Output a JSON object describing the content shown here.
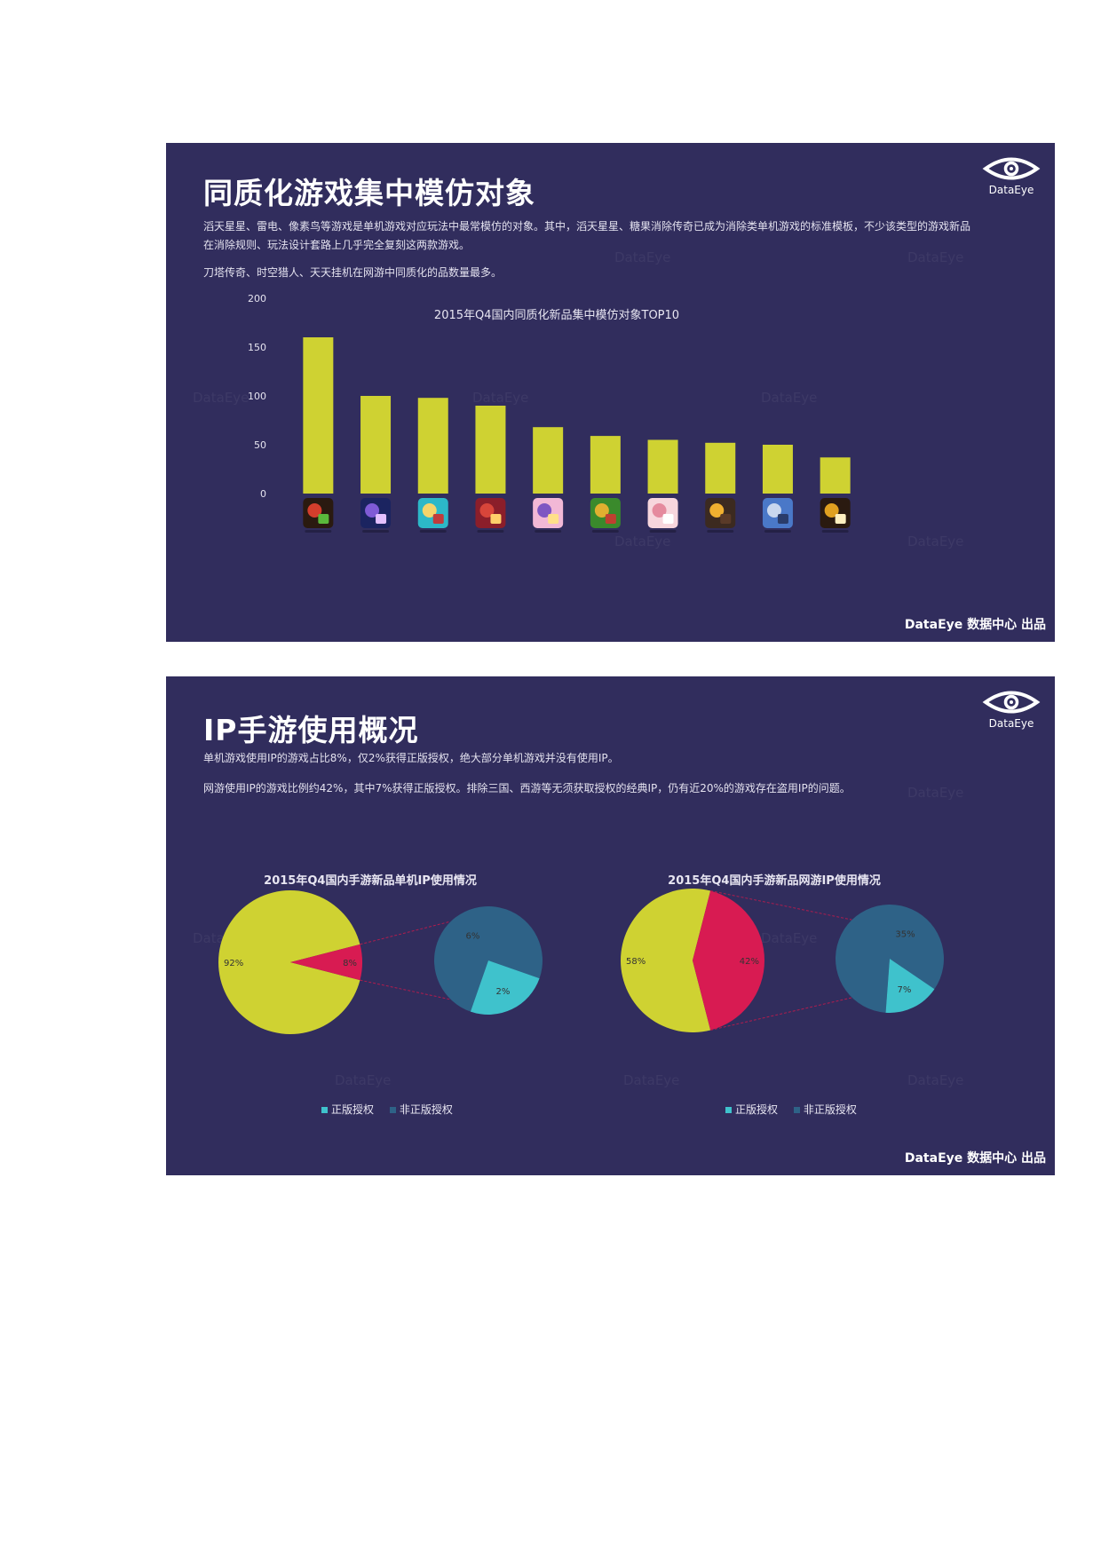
{
  "slide1": {
    "title": "同质化游戏集中模仿对象",
    "paragraphs": [
      "滔天星星、雷电、像素鸟等游戏是单机游戏对应玩法中最常模仿的对象。其中，滔天星星、糖果消除传奇已成为消除类单机游戏的标准模板，不少该类型的游戏新品在消除规则、玩法设计套路上几乎完全复刻这两款游戏。",
      "刀塔传奇、时空猎人、天天挂机在网游中同质化的品数量最多。"
    ],
    "logo_text": "DataEye",
    "footer": "DataEye 数据中心 出品",
    "watermark": "DataEye",
    "chart_data": {
      "type": "bar",
      "title": "2015年Q4国内同质化新品集中模仿对象TOP10",
      "categories": [
        "",
        "",
        "",
        "",
        "",
        "",
        "",
        "",
        "",
        ""
      ],
      "values": [
        160,
        100,
        98,
        90,
        68,
        59,
        55,
        52,
        50,
        37
      ],
      "ylim": [
        0,
        200
      ],
      "yticks": [
        0,
        50,
        100,
        150,
        200
      ],
      "bar_color": "#cfd232",
      "grid": false,
      "x_labels_as_app_icons": true,
      "icon_colors": [
        [
          "#2a1a10",
          "#d33e2c",
          "#5ab83c"
        ],
        [
          "#1b2460",
          "#7f5bd6",
          "#e3c0ff"
        ],
        [
          "#2cb8c8",
          "#f4d46b",
          "#c03c3c"
        ],
        [
          "#8b1e2a",
          "#d8453a",
          "#ffcf6a"
        ],
        [
          "#f2b8d6",
          "#7e57c2",
          "#ffe08a"
        ],
        [
          "#3a8a2c",
          "#e0b030",
          "#c04030"
        ],
        [
          "#f7d6dd",
          "#e58a9e",
          "#ffffff"
        ],
        [
          "#3c2a20",
          "#f0b030",
          "#5a3a28"
        ],
        [
          "#4a78c8",
          "#c9d7ee",
          "#2a3c6a"
        ],
        [
          "#2a1a10",
          "#e0a020",
          "#fff0c0"
        ]
      ]
    }
  },
  "slide2": {
    "title": "IP手游使用概况",
    "paragraphs": [
      "单机游戏使用IP的游戏占比8%，仅2%获得正版授权，绝大部分单机游戏并没有使用IP。",
      "网游使用IP的游戏比例约42%，其中7%获得正版授权。排除三国、西游等无须获取授权的经典IP，仍有近20%的游戏存在盗用IP的问题。"
    ],
    "logo_text": "DataEye",
    "footer": "DataEye 数据中心 出品",
    "watermark": "DataEye",
    "legend_labels": [
      "正版授权",
      "非正版授权"
    ],
    "chart_data": [
      {
        "type": "pie",
        "title": "2015年Q4国内手游新品单机IP使用情况",
        "slices": [
          {
            "label": "92%",
            "value": 92,
            "color": "#cfd232"
          },
          {
            "label": "8%",
            "value": 8,
            "color": "#d81b52"
          }
        ],
        "breakout": {
          "from_slice": "8%",
          "slices": [
            {
              "name": "正版授权",
              "label": "2%",
              "value": 2,
              "color": "#3fc2cc"
            },
            {
              "name": "非正版授权",
              "label": "6%",
              "value": 6,
              "color": "#2e6287"
            }
          ]
        },
        "legend_placement": "bottom"
      },
      {
        "type": "pie",
        "title": "2015年Q4国内手游新品网游IP使用情况",
        "slices": [
          {
            "label": "58%",
            "value": 58,
            "color": "#cfd232"
          },
          {
            "label": "42%",
            "value": 42,
            "color": "#d81b52"
          }
        ],
        "breakout": {
          "from_slice": "42%",
          "slices": [
            {
              "name": "正版授权",
              "label": "7%",
              "value": 7,
              "color": "#3fc2cc"
            },
            {
              "name": "非正版授权",
              "label": "35%",
              "value": 35,
              "color": "#2e6287"
            }
          ]
        },
        "legend_placement": "bottom"
      }
    ]
  }
}
